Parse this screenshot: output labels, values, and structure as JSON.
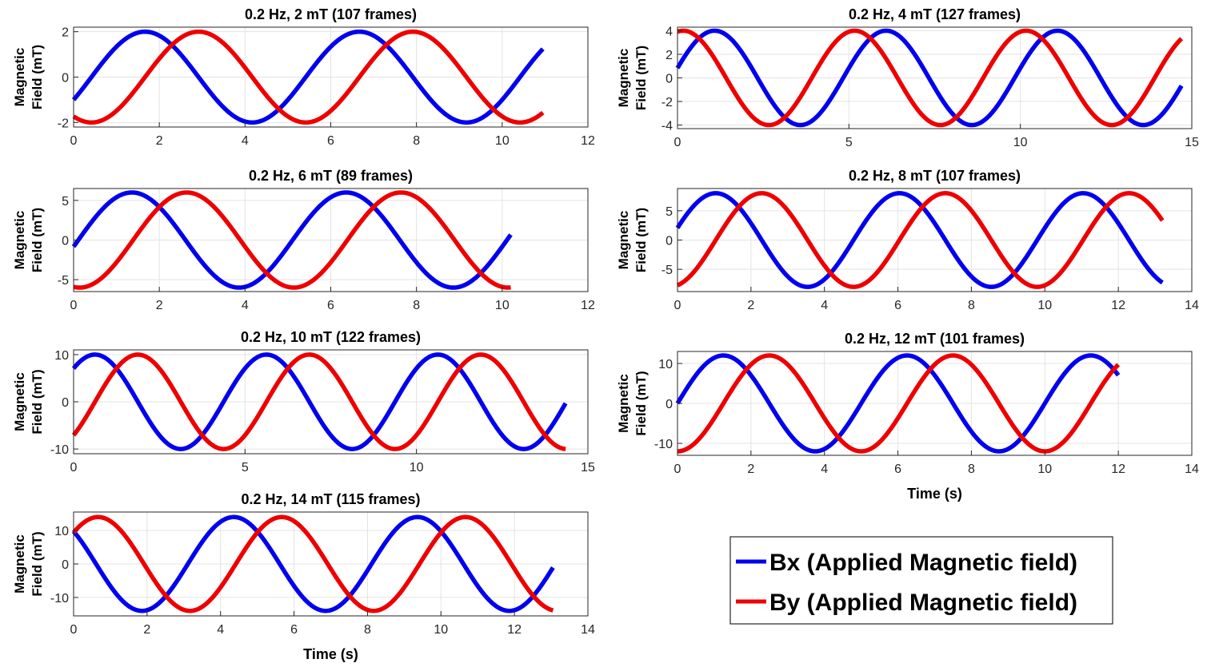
{
  "colors": {
    "bx": "#0000ee",
    "by": "#ee0000",
    "grid": "#e3e3e3",
    "axis": "#262626"
  },
  "legend": {
    "entries": [
      "Bx (Applied Magnetic field)",
      "By (Applied Magnetic field)"
    ]
  },
  "chart_data": [
    {
      "type": "line",
      "title": "0.2 Hz, 2 mT (107 frames)",
      "xlabel": "",
      "ylabel": [
        "Magnetic",
        "Field (mT)"
      ],
      "xlim": [
        0,
        12
      ],
      "ylim": [
        -2.2,
        2.2
      ],
      "xticks": [
        0,
        2,
        4,
        6,
        8,
        10,
        12
      ],
      "yticks": [
        -2,
        0,
        2
      ],
      "freq_hz": 0.2,
      "amplitude": 2,
      "x_end": 10.95,
      "series": [
        {
          "name": "Bx",
          "phase_deg": -30
        },
        {
          "name": "By",
          "phase_deg": -120
        }
      ]
    },
    {
      "type": "line",
      "title": "0.2 Hz, 4 mT (127 frames)",
      "xlabel": "",
      "ylabel": [
        "Magnetic",
        "Field (mT)"
      ],
      "xlim": [
        0,
        15
      ],
      "ylim": [
        -4.3,
        4.3
      ],
      "xticks": [
        0,
        5,
        10,
        15
      ],
      "yticks": [
        -4,
        -2,
        0,
        2,
        4
      ],
      "freq_hz": 0.2,
      "amplitude": 4,
      "x_end": 14.7,
      "series": [
        {
          "name": "Bx",
          "phase_deg": 12
        },
        {
          "name": "By",
          "phase_deg": 78
        }
      ]
    },
    {
      "type": "line",
      "title": "0.2 Hz, 6 mT (89 frames)",
      "xlabel": "",
      "ylabel": [
        "Magnetic",
        "Field (mT)"
      ],
      "xlim": [
        0,
        12
      ],
      "ylim": [
        -6.5,
        6.5
      ],
      "xticks": [
        0,
        2,
        4,
        6,
        8,
        10,
        12
      ],
      "yticks": [
        -5,
        0,
        5
      ],
      "freq_hz": 0.2,
      "amplitude": 6,
      "x_end": 10.2,
      "series": [
        {
          "name": "Bx",
          "phase_deg": -8
        },
        {
          "name": "By",
          "phase_deg": -100
        }
      ]
    },
    {
      "type": "line",
      "title": "0.2 Hz, 8 mT (107 frames)",
      "xlabel": "",
      "ylabel": [
        "Magnetic",
        "Field (mT)"
      ],
      "xlim": [
        0,
        14
      ],
      "ylim": [
        -8.8,
        8.8
      ],
      "xticks": [
        0,
        2,
        4,
        6,
        8,
        10,
        12,
        14
      ],
      "yticks": [
        -5,
        0,
        5
      ],
      "freq_hz": 0.2,
      "amplitude": 8,
      "x_end": 13.2,
      "series": [
        {
          "name": "Bx",
          "phase_deg": 15
        },
        {
          "name": "By",
          "phase_deg": -75
        }
      ]
    },
    {
      "type": "line",
      "title": "0.2 Hz, 10 mT (122 frames)",
      "xlabel": "",
      "ylabel": [
        "Magnetic",
        "Field (mT)"
      ],
      "xlim": [
        0,
        15
      ],
      "ylim": [
        -11,
        11
      ],
      "xticks": [
        0,
        5,
        10,
        15
      ],
      "yticks": [
        -10,
        0,
        10
      ],
      "freq_hz": 0.2,
      "amplitude": 10,
      "x_end": 14.35,
      "series": [
        {
          "name": "Bx",
          "phase_deg": 45
        },
        {
          "name": "By",
          "phase_deg": -45
        }
      ]
    },
    {
      "type": "line",
      "title": "0.2 Hz, 12 mT (101 frames)",
      "xlabel": "Time (s)",
      "ylabel": [
        "Magnetic",
        "Field (mT)"
      ],
      "xlim": [
        0,
        14
      ],
      "ylim": [
        -13,
        13
      ],
      "xticks": [
        0,
        2,
        4,
        6,
        8,
        10,
        12,
        14
      ],
      "yticks": [
        -10,
        0,
        10
      ],
      "freq_hz": 0.2,
      "amplitude": 12,
      "x_end": 12.0,
      "series": [
        {
          "name": "Bx",
          "phase_deg": 0
        },
        {
          "name": "By",
          "phase_deg": -90
        }
      ]
    },
    {
      "type": "line",
      "title": "0.2 Hz, 14 mT (115 frames)",
      "xlabel": "Time (s)",
      "ylabel": [
        "Magnetic",
        "Field (mT)"
      ],
      "xlim": [
        0,
        14
      ],
      "ylim": [
        -15.5,
        15.5
      ],
      "xticks": [
        0,
        2,
        4,
        6,
        8,
        10,
        12,
        14
      ],
      "yticks": [
        -10,
        0,
        10
      ],
      "freq_hz": 0.2,
      "amplitude": 14,
      "x_end": 13.05,
      "series": [
        {
          "name": "Bx",
          "phase_deg": 136
        },
        {
          "name": "By",
          "phase_deg": 42
        }
      ]
    }
  ]
}
